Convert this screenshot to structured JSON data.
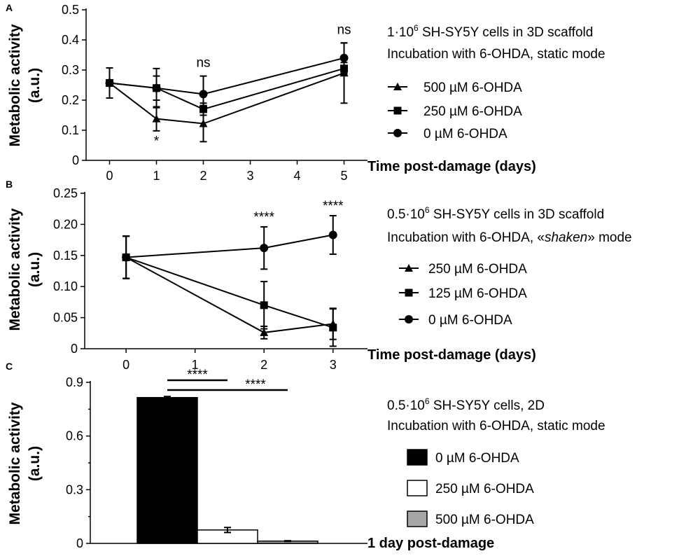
{
  "chart_data": [
    {
      "panel": "A",
      "type": "line",
      "title_line1_prefix": "1·10",
      "title_line1_sup": "6",
      "title_line1_suffix": " SH-SY5Y cells in 3D scaffold",
      "title_line2": "Incubation with 6-OHDA, static mode",
      "xlabel": "Time post-damage (days)",
      "ylabel_line1": "Metabolic activity",
      "ylabel_line2": "(a.u.)",
      "xticks": [
        0,
        1,
        2,
        3,
        4,
        5
      ],
      "xlim": [
        -0.5,
        5.5
      ],
      "yticks": [
        0,
        0.1,
        0.2,
        0.3,
        0.4,
        0.5
      ],
      "ytick_labels": [
        "0",
        "0.1",
        "0.2",
        "0.3",
        "0.4",
        "0.5"
      ],
      "ylim": [
        0,
        0.5
      ],
      "series": [
        {
          "name": "500 µM 6-OHDA",
          "marker": "triangle",
          "x": [
            0,
            1,
            2,
            5
          ],
          "values": [
            0.257,
            0.138,
            0.122,
            0.29
          ],
          "errors": [
            0.05,
            0.04,
            0.06,
            0.1
          ]
        },
        {
          "name": "250 µM 6-OHDA",
          "marker": "square",
          "x": [
            0,
            1,
            2,
            5
          ],
          "values": [
            0.257,
            0.24,
            0.17,
            0.305
          ],
          "errors": [
            0.05,
            0.065,
            0.02,
            0.02
          ]
        },
        {
          "name": "0 µM 6-OHDA",
          "marker": "circle",
          "x": [
            0,
            1,
            2,
            5
          ],
          "values": [
            0.257,
            0.24,
            0.22,
            0.34
          ],
          "errors": [
            0.05,
            0.04,
            0.06,
            0.05
          ]
        }
      ],
      "annotations": [
        {
          "x": 1,
          "y": 0.05,
          "text": "*"
        },
        {
          "x": 2,
          "y": 0.31,
          "text": "ns"
        },
        {
          "x": 5,
          "y": 0.42,
          "text": "ns"
        }
      ]
    },
    {
      "panel": "B",
      "type": "line",
      "title_line1_prefix": "0.5·10",
      "title_line1_sup": "6",
      "title_line1_suffix": " SH-SY5Y cells in 3D scaffold",
      "title_line2_prefix": "Incubation with 6-OHDA, «",
      "title_line2_italic": "shaken",
      "title_line2_suffix": "» mode",
      "xlabel": "Time post-damage (days)",
      "ylabel_line1": "Metabolic activity",
      "ylabel_line2": "(a.u.)",
      "xticks": [
        0,
        1,
        2,
        3
      ],
      "xlim": [
        -0.6,
        3.5
      ],
      "yticks": [
        0,
        0.05,
        0.1,
        0.15,
        0.2,
        0.25
      ],
      "ytick_labels": [
        "0",
        "0.05",
        "0.10",
        "0.15",
        "0.20",
        "0.25"
      ],
      "ylim": [
        0,
        0.25
      ],
      "series": [
        {
          "name": "250 µM 6-OHDA",
          "marker": "triangle",
          "x": [
            0,
            2,
            3
          ],
          "values": [
            0.147,
            0.026,
            0.04
          ],
          "errors": [
            0.034,
            0.01,
            0.025
          ]
        },
        {
          "name": "125 µM 6-OHDA",
          "marker": "square",
          "x": [
            0,
            2,
            3
          ],
          "values": [
            0.147,
            0.07,
            0.034
          ],
          "errors": [
            0.034,
            0.038,
            0.03
          ]
        },
        {
          "name": "0 µM 6-OHDA",
          "marker": "circle",
          "x": [
            0,
            2,
            3
          ],
          "values": [
            0.147,
            0.162,
            0.183
          ],
          "errors": [
            0.034,
            0.034,
            0.031
          ]
        }
      ],
      "annotations": [
        {
          "x": 2,
          "y": 0.205,
          "text": "****"
        },
        {
          "x": 3,
          "y": 0.223,
          "text": "****"
        }
      ]
    },
    {
      "panel": "C",
      "type": "bar",
      "title_line1_prefix": "0.5·10",
      "title_line1_sup": "6",
      "title_line1_suffix": " SH-SY5Y cells, 2D",
      "title_line2": "Incubation with 6-OHDA, static mode",
      "xlabel": "1 day post-damage",
      "ylabel_line1": "Metabolic activity",
      "ylabel_line2": "(a.u.)",
      "yticks": [
        0,
        0.3,
        0.6,
        0.9
      ],
      "ytick_labels": [
        "0",
        "0.3",
        "0.6",
        "0.9"
      ],
      "ylim": [
        0,
        0.9
      ],
      "categories": [
        "0 µM 6-OHDA",
        "250 µM 6-OHDA",
        "500 µM 6-OHDA"
      ],
      "values": [
        0.815,
        0.075,
        0.013
      ],
      "errors": [
        0.006,
        0.014,
        0.002
      ],
      "colors": [
        "#000000",
        "#ffffff",
        "#a6a6a6"
      ],
      "significance": [
        {
          "from": 0,
          "to": 1,
          "text": "****"
        },
        {
          "from": 0,
          "to": 2,
          "text": "****"
        }
      ]
    }
  ]
}
